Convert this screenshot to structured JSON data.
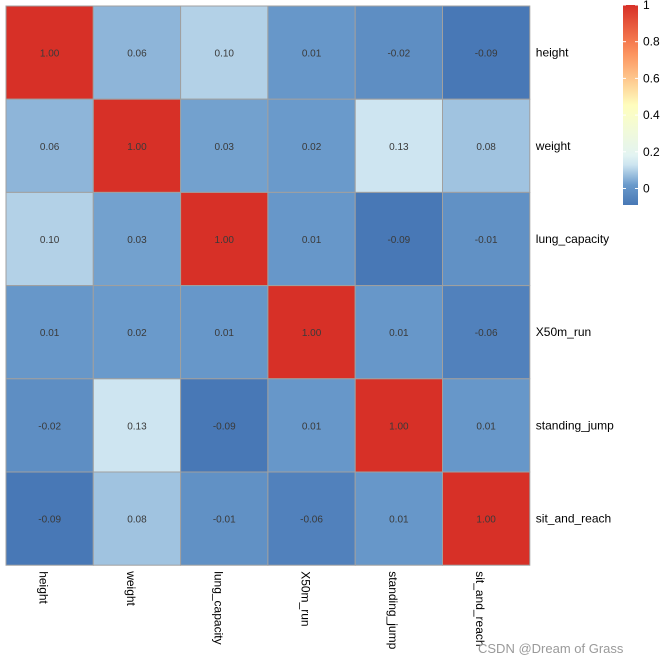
{
  "chart_data": {
    "type": "heatmap",
    "title": "",
    "rows": [
      "height",
      "weight",
      "lung_capacity",
      "X50m_run",
      "standing_jump",
      "sit_and_reach"
    ],
    "columns": [
      "height",
      "weight",
      "lung_capacity",
      "X50m_run",
      "standing_jump",
      "sit_and_reach"
    ],
    "values": [
      [
        1.0,
        0.06,
        0.1,
        0.01,
        -0.02,
        -0.09
      ],
      [
        0.06,
        1.0,
        0.03,
        0.02,
        0.13,
        0.08
      ],
      [
        0.1,
        0.03,
        1.0,
        0.01,
        -0.09,
        -0.01
      ],
      [
        0.01,
        0.02,
        0.01,
        1.0,
        0.01,
        -0.06
      ],
      [
        -0.02,
        0.13,
        -0.09,
        0.01,
        1.0,
        0.01
      ],
      [
        -0.09,
        0.08,
        -0.01,
        -0.06,
        0.01,
        1.0
      ]
    ],
    "value_labels": [
      [
        "1.00",
        "0.06",
        "0.10",
        "0.01",
        "-0.02",
        "-0.09"
      ],
      [
        "0.06",
        "1.00",
        "0.03",
        "0.02",
        "0.13",
        "0.08"
      ],
      [
        "0.10",
        "0.03",
        "1.00",
        "0.01",
        "-0.09",
        "-0.01"
      ],
      [
        "0.01",
        "0.02",
        "0.01",
        "1.00",
        "0.01",
        "-0.06"
      ],
      [
        "-0.02",
        "0.13",
        "-0.09",
        "0.01",
        "1.00",
        "0.01"
      ],
      [
        "-0.09",
        "0.08",
        "-0.01",
        "-0.06",
        "0.01",
        "1.00"
      ]
    ],
    "legend": {
      "position": "top-right",
      "range": [
        -0.09,
        1.0
      ],
      "ticks": [
        0,
        0.2,
        0.4,
        0.6,
        0.8,
        1
      ],
      "tick_labels": [
        "0",
        "0.2",
        "0.4",
        "0.6",
        "0.8",
        "1"
      ]
    },
    "colors": {
      "low": "#4575b4",
      "mid_low": "#91bfdb",
      "mid": "#e0f3f8",
      "mid2": "#ffffbf",
      "mid_high": "#fc8d59",
      "high": "#d73027",
      "border": "#a0a0a0"
    }
  },
  "watermark": "CSDN @Dream of Grass"
}
